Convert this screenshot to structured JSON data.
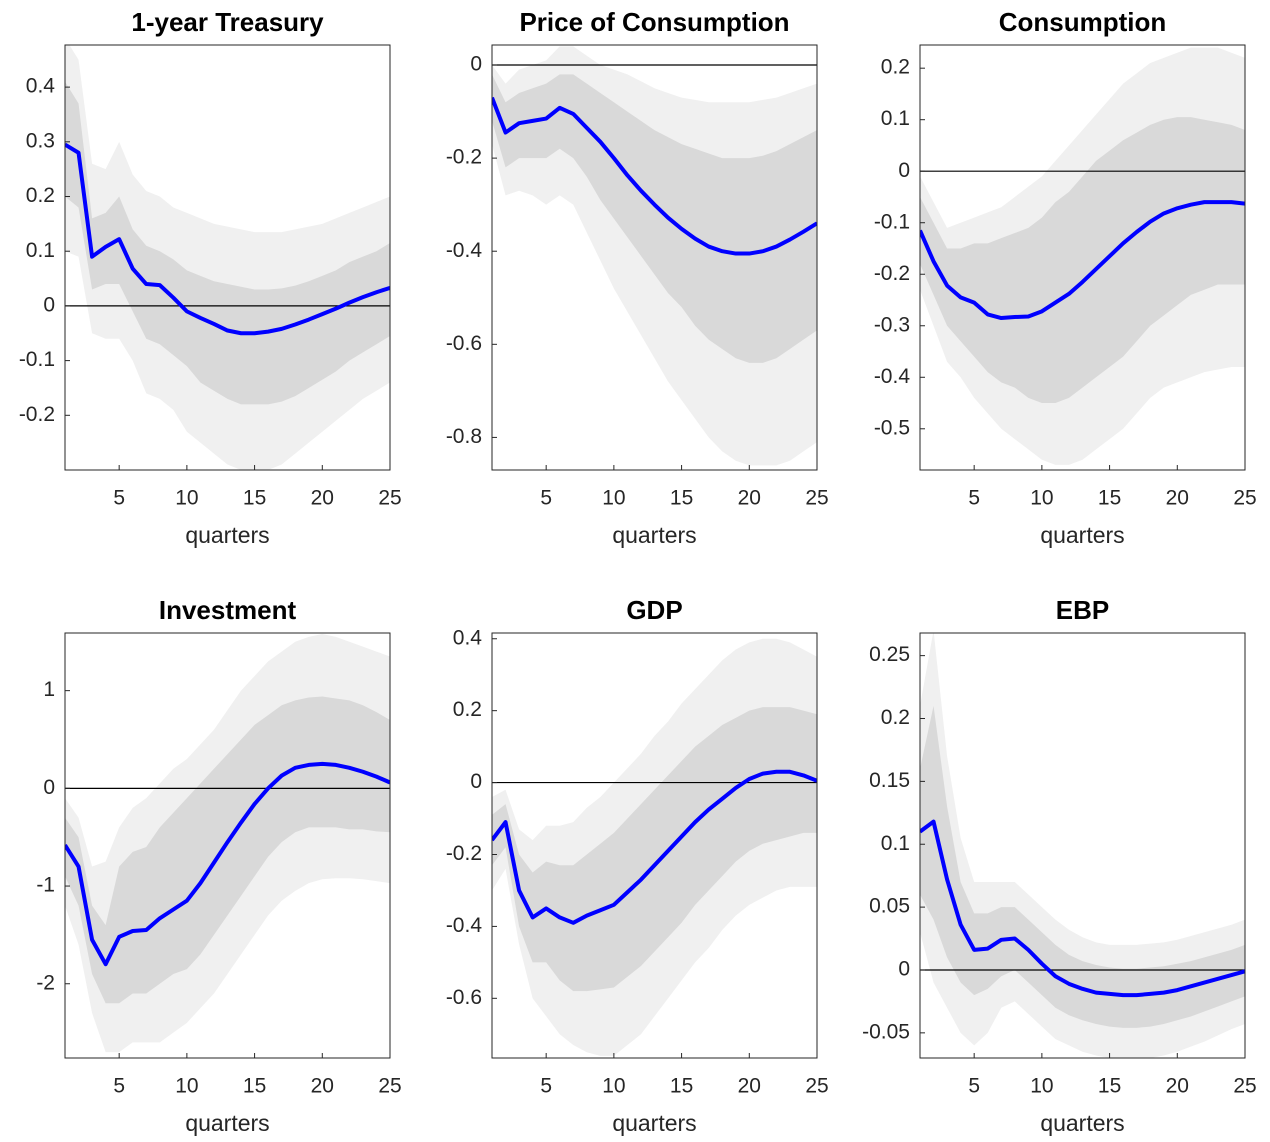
{
  "chart_data": [
    {
      "type": "line",
      "title": "1-year Treasury",
      "xlabel": "quarters",
      "x": [
        1,
        2,
        3,
        4,
        5,
        6,
        7,
        8,
        9,
        10,
        11,
        12,
        13,
        14,
        15,
        16,
        17,
        18,
        19,
        20,
        21,
        22,
        23,
        24,
        25
      ],
      "xlim": [
        1,
        25
      ],
      "xticks": [
        5,
        10,
        15,
        20,
        25
      ],
      "ylim": [
        -0.3,
        0.477
      ],
      "yticks": [
        -0.2,
        -0.1,
        0,
        0.1,
        0.2,
        0.3,
        0.4
      ],
      "reference_line": 0,
      "color": "#0000ff",
      "values": [
        0.295,
        0.28,
        0.09,
        0.108,
        0.122,
        0.068,
        0.04,
        0.038,
        0.015,
        -0.01,
        -0.022,
        -0.033,
        -0.045,
        -0.05,
        -0.05,
        -0.047,
        -0.042,
        -0.034,
        -0.025,
        -0.015,
        -0.005,
        0.006,
        0.016,
        0.025,
        0.033
      ],
      "bands": [
        {
          "color": "#f0f0f0",
          "upper": [
            0.49,
            0.45,
            0.26,
            0.25,
            0.3,
            0.24,
            0.21,
            0.2,
            0.18,
            0.17,
            0.16,
            0.15,
            0.145,
            0.14,
            0.135,
            0.135,
            0.135,
            0.14,
            0.145,
            0.15,
            0.16,
            0.17,
            0.18,
            0.19,
            0.2
          ],
          "lower": [
            0.1,
            0.09,
            -0.05,
            -0.06,
            -0.06,
            -0.1,
            -0.16,
            -0.17,
            -0.19,
            -0.23,
            -0.25,
            -0.27,
            -0.29,
            -0.3,
            -0.3,
            -0.3,
            -0.29,
            -0.27,
            -0.25,
            -0.23,
            -0.21,
            -0.19,
            -0.17,
            -0.155,
            -0.14
          ]
        },
        {
          "color": "#d9d9d9",
          "upper": [
            0.41,
            0.37,
            0.16,
            0.17,
            0.2,
            0.14,
            0.11,
            0.1,
            0.085,
            0.065,
            0.055,
            0.045,
            0.04,
            0.035,
            0.03,
            0.03,
            0.032,
            0.037,
            0.045,
            0.055,
            0.065,
            0.08,
            0.09,
            0.1,
            0.115
          ],
          "lower": [
            0.2,
            0.18,
            0.03,
            0.04,
            0.04,
            -0.01,
            -0.06,
            -0.07,
            -0.09,
            -0.11,
            -0.14,
            -0.155,
            -0.17,
            -0.18,
            -0.18,
            -0.18,
            -0.175,
            -0.165,
            -0.15,
            -0.135,
            -0.12,
            -0.1,
            -0.085,
            -0.07,
            -0.055
          ]
        }
      ]
    },
    {
      "type": "line",
      "title": "Price of Consumption",
      "xlabel": "quarters",
      "x": [
        1,
        2,
        3,
        4,
        5,
        6,
        7,
        8,
        9,
        10,
        11,
        12,
        13,
        14,
        15,
        16,
        17,
        18,
        19,
        20,
        21,
        22,
        23,
        24,
        25
      ],
      "xlim": [
        1,
        25
      ],
      "xticks": [
        5,
        10,
        15,
        20,
        25
      ],
      "ylim": [
        -0.87,
        0.043
      ],
      "yticks": [
        -0.8,
        -0.6,
        -0.4,
        -0.2,
        0
      ],
      "reference_line": 0,
      "color": "#0000ff",
      "values": [
        -0.07,
        -0.145,
        -0.125,
        -0.12,
        -0.115,
        -0.092,
        -0.105,
        -0.135,
        -0.165,
        -0.2,
        -0.237,
        -0.27,
        -0.3,
        -0.328,
        -0.352,
        -0.373,
        -0.39,
        -0.4,
        -0.405,
        -0.405,
        -0.4,
        -0.39,
        -0.375,
        -0.358,
        -0.34
      ],
      "bands": [
        {
          "color": "#f0f0f0",
          "upper": [
            0.0,
            -0.04,
            -0.01,
            0.0,
            0.01,
            0.04,
            0.04,
            0.02,
            0.0,
            -0.01,
            -0.02,
            -0.035,
            -0.05,
            -0.06,
            -0.07,
            -0.075,
            -0.08,
            -0.08,
            -0.08,
            -0.08,
            -0.075,
            -0.07,
            -0.06,
            -0.05,
            -0.04
          ],
          "lower": [
            -0.17,
            -0.28,
            -0.27,
            -0.28,
            -0.3,
            -0.28,
            -0.3,
            -0.36,
            -0.42,
            -0.48,
            -0.53,
            -0.58,
            -0.63,
            -0.68,
            -0.72,
            -0.76,
            -0.8,
            -0.83,
            -0.85,
            -0.86,
            -0.86,
            -0.86,
            -0.85,
            -0.83,
            -0.81
          ]
        },
        {
          "color": "#d9d9d9",
          "upper": [
            -0.02,
            -0.08,
            -0.06,
            -0.05,
            -0.04,
            -0.02,
            -0.02,
            -0.04,
            -0.06,
            -0.08,
            -0.1,
            -0.12,
            -0.14,
            -0.155,
            -0.17,
            -0.18,
            -0.19,
            -0.2,
            -0.2,
            -0.2,
            -0.195,
            -0.185,
            -0.17,
            -0.155,
            -0.14
          ],
          "lower": [
            -0.12,
            -0.22,
            -0.2,
            -0.2,
            -0.2,
            -0.18,
            -0.2,
            -0.24,
            -0.29,
            -0.33,
            -0.37,
            -0.41,
            -0.45,
            -0.49,
            -0.52,
            -0.56,
            -0.59,
            -0.61,
            -0.63,
            -0.64,
            -0.64,
            -0.63,
            -0.61,
            -0.59,
            -0.57
          ]
        }
      ]
    },
    {
      "type": "line",
      "title": "Consumption",
      "xlabel": "quarters",
      "x": [
        1,
        2,
        3,
        4,
        5,
        6,
        7,
        8,
        9,
        10,
        11,
        12,
        13,
        14,
        15,
        16,
        17,
        18,
        19,
        20,
        21,
        22,
        23,
        24,
        25
      ],
      "xlim": [
        1,
        25
      ],
      "xticks": [
        5,
        10,
        15,
        20,
        25
      ],
      "ylim": [
        -0.58,
        0.245
      ],
      "yticks": [
        -0.5,
        -0.4,
        -0.3,
        -0.2,
        -0.1,
        0,
        0.1,
        0.2
      ],
      "reference_line": 0,
      "color": "#0000ff",
      "values": [
        -0.115,
        -0.175,
        -0.222,
        -0.245,
        -0.255,
        -0.278,
        -0.285,
        -0.283,
        -0.282,
        -0.272,
        -0.255,
        -0.238,
        -0.215,
        -0.19,
        -0.165,
        -0.14,
        -0.118,
        -0.098,
        -0.082,
        -0.072,
        -0.065,
        -0.06,
        -0.06,
        -0.06,
        -0.063
      ],
      "bands": [
        {
          "color": "#f0f0f0",
          "upper": [
            -0.01,
            -0.06,
            -0.11,
            -0.1,
            -0.09,
            -0.08,
            -0.07,
            -0.05,
            -0.03,
            -0.01,
            0.02,
            0.05,
            0.08,
            0.11,
            0.14,
            0.17,
            0.19,
            0.21,
            0.22,
            0.23,
            0.24,
            0.24,
            0.24,
            0.23,
            0.22
          ],
          "lower": [
            -0.23,
            -0.3,
            -0.37,
            -0.4,
            -0.44,
            -0.47,
            -0.5,
            -0.52,
            -0.54,
            -0.56,
            -0.57,
            -0.57,
            -0.56,
            -0.54,
            -0.52,
            -0.5,
            -0.47,
            -0.44,
            -0.42,
            -0.41,
            -0.4,
            -0.39,
            -0.385,
            -0.38,
            -0.38
          ]
        },
        {
          "color": "#d9d9d9",
          "upper": [
            -0.05,
            -0.1,
            -0.15,
            -0.15,
            -0.14,
            -0.14,
            -0.13,
            -0.12,
            -0.11,
            -0.09,
            -0.06,
            -0.04,
            -0.01,
            0.02,
            0.04,
            0.06,
            0.075,
            0.09,
            0.1,
            0.105,
            0.105,
            0.1,
            0.095,
            0.09,
            0.08
          ],
          "lower": [
            -0.18,
            -0.24,
            -0.3,
            -0.33,
            -0.36,
            -0.39,
            -0.41,
            -0.42,
            -0.44,
            -0.45,
            -0.45,
            -0.44,
            -0.42,
            -0.4,
            -0.38,
            -0.36,
            -0.33,
            -0.3,
            -0.28,
            -0.26,
            -0.24,
            -0.23,
            -0.22,
            -0.22,
            -0.22
          ]
        }
      ]
    },
    {
      "type": "line",
      "title": "Investment",
      "xlabel": "quarters",
      "x": [
        1,
        2,
        3,
        4,
        5,
        6,
        7,
        8,
        9,
        10,
        11,
        12,
        13,
        14,
        15,
        16,
        17,
        18,
        19,
        20,
        21,
        22,
        23,
        24,
        25
      ],
      "xlim": [
        1,
        25
      ],
      "xticks": [
        5,
        10,
        15,
        20,
        25
      ],
      "ylim": [
        -2.76,
        1.59
      ],
      "yticks": [
        -2,
        -1,
        0,
        1
      ],
      "reference_line": 0,
      "color": "#0000ff",
      "values": [
        -0.58,
        -0.8,
        -1.55,
        -1.8,
        -1.52,
        -1.46,
        -1.45,
        -1.33,
        -1.24,
        -1.15,
        -0.97,
        -0.76,
        -0.55,
        -0.35,
        -0.16,
        0.0,
        0.13,
        0.21,
        0.24,
        0.25,
        0.24,
        0.21,
        0.17,
        0.12,
        0.06
      ],
      "bands": [
        {
          "color": "#f0f0f0",
          "upper": [
            -0.1,
            -0.3,
            -0.8,
            -0.75,
            -0.4,
            -0.2,
            -0.1,
            0.05,
            0.2,
            0.3,
            0.45,
            0.6,
            0.8,
            1.0,
            1.15,
            1.3,
            1.4,
            1.5,
            1.55,
            1.58,
            1.55,
            1.5,
            1.45,
            1.4,
            1.35
          ],
          "lower": [
            -1.2,
            -1.6,
            -2.3,
            -2.7,
            -2.7,
            -2.6,
            -2.6,
            -2.6,
            -2.5,
            -2.4,
            -2.25,
            -2.1,
            -1.9,
            -1.7,
            -1.5,
            -1.3,
            -1.15,
            -1.05,
            -0.97,
            -0.93,
            -0.92,
            -0.92,
            -0.93,
            -0.95,
            -0.97
          ]
        },
        {
          "color": "#d9d9d9",
          "upper": [
            -0.3,
            -0.5,
            -1.2,
            -1.4,
            -0.8,
            -0.65,
            -0.6,
            -0.4,
            -0.25,
            -0.1,
            0.05,
            0.2,
            0.35,
            0.5,
            0.65,
            0.75,
            0.85,
            0.9,
            0.93,
            0.94,
            0.92,
            0.9,
            0.85,
            0.78,
            0.7
          ],
          "lower": [
            -0.9,
            -1.2,
            -1.9,
            -2.2,
            -2.2,
            -2.1,
            -2.1,
            -2.0,
            -1.9,
            -1.85,
            -1.7,
            -1.5,
            -1.3,
            -1.1,
            -0.9,
            -0.7,
            -0.55,
            -0.45,
            -0.4,
            -0.4,
            -0.4,
            -0.42,
            -0.42,
            -0.44,
            -0.45
          ]
        }
      ]
    },
    {
      "type": "line",
      "title": "GDP",
      "xlabel": "quarters",
      "x": [
        1,
        2,
        3,
        4,
        5,
        6,
        7,
        8,
        9,
        10,
        11,
        12,
        13,
        14,
        15,
        16,
        17,
        18,
        19,
        20,
        21,
        22,
        23,
        24,
        25
      ],
      "xlim": [
        1,
        25
      ],
      "xticks": [
        5,
        10,
        15,
        20,
        25
      ],
      "ylim": [
        -0.766,
        0.416
      ],
      "yticks": [
        -0.6,
        -0.4,
        -0.2,
        0,
        0.2,
        0.4
      ],
      "reference_line": 0,
      "color": "#0000ff",
      "values": [
        -0.16,
        -0.11,
        -0.3,
        -0.375,
        -0.35,
        -0.375,
        -0.39,
        -0.37,
        -0.355,
        -0.34,
        -0.305,
        -0.27,
        -0.23,
        -0.19,
        -0.15,
        -0.11,
        -0.075,
        -0.045,
        -0.015,
        0.01,
        0.025,
        0.03,
        0.03,
        0.02,
        0.005
      ],
      "bands": [
        {
          "color": "#f0f0f0",
          "upper": [
            -0.04,
            -0.02,
            -0.13,
            -0.16,
            -0.12,
            -0.12,
            -0.11,
            -0.07,
            -0.04,
            0.0,
            0.04,
            0.08,
            0.13,
            0.17,
            0.22,
            0.26,
            0.3,
            0.34,
            0.37,
            0.39,
            0.4,
            0.4,
            0.39,
            0.37,
            0.35
          ],
          "lower": [
            -0.3,
            -0.24,
            -0.45,
            -0.6,
            -0.65,
            -0.7,
            -0.73,
            -0.75,
            -0.76,
            -0.76,
            -0.73,
            -0.7,
            -0.65,
            -0.6,
            -0.55,
            -0.5,
            -0.46,
            -0.41,
            -0.37,
            -0.34,
            -0.32,
            -0.3,
            -0.29,
            -0.29,
            -0.29
          ]
        },
        {
          "color": "#d9d9d9",
          "upper": [
            -0.09,
            -0.06,
            -0.2,
            -0.25,
            -0.22,
            -0.23,
            -0.23,
            -0.2,
            -0.17,
            -0.14,
            -0.1,
            -0.06,
            -0.02,
            0.02,
            0.06,
            0.1,
            0.13,
            0.16,
            0.18,
            0.2,
            0.21,
            0.21,
            0.21,
            0.2,
            0.19
          ],
          "lower": [
            -0.23,
            -0.18,
            -0.4,
            -0.5,
            -0.5,
            -0.55,
            -0.58,
            -0.58,
            -0.575,
            -0.57,
            -0.54,
            -0.51,
            -0.47,
            -0.43,
            -0.39,
            -0.34,
            -0.3,
            -0.26,
            -0.22,
            -0.19,
            -0.17,
            -0.16,
            -0.15,
            -0.14,
            -0.14
          ]
        }
      ]
    },
    {
      "type": "line",
      "title": "EBP",
      "xlabel": "quarters",
      "x": [
        1,
        2,
        3,
        4,
        5,
        6,
        7,
        8,
        9,
        10,
        11,
        12,
        13,
        14,
        15,
        16,
        17,
        18,
        19,
        20,
        21,
        22,
        23,
        24,
        25
      ],
      "xlim": [
        1,
        25
      ],
      "xticks": [
        5,
        10,
        15,
        20,
        25
      ],
      "ylim": [
        -0.07,
        0.268
      ],
      "yticks": [
        -0.05,
        0,
        0.05,
        0.1,
        0.15,
        0.2,
        0.25
      ],
      "reference_line": 0,
      "color": "#0000ff",
      "values": [
        0.11,
        0.118,
        0.072,
        0.036,
        0.016,
        0.017,
        0.024,
        0.025,
        0.016,
        0.005,
        -0.005,
        -0.011,
        -0.015,
        -0.018,
        -0.019,
        -0.02,
        -0.02,
        -0.019,
        -0.018,
        -0.016,
        -0.013,
        -0.01,
        -0.007,
        -0.004,
        -0.001
      ],
      "bands": [
        {
          "color": "#f0f0f0",
          "upper": [
            0.21,
            0.27,
            0.17,
            0.105,
            0.07,
            0.07,
            0.07,
            0.07,
            0.06,
            0.05,
            0.04,
            0.032,
            0.026,
            0.022,
            0.02,
            0.02,
            0.02,
            0.021,
            0.022,
            0.024,
            0.027,
            0.03,
            0.033,
            0.036,
            0.04
          ],
          "lower": [
            0.03,
            -0.01,
            -0.03,
            -0.05,
            -0.06,
            -0.05,
            -0.03,
            -0.025,
            -0.035,
            -0.045,
            -0.055,
            -0.06,
            -0.065,
            -0.068,
            -0.07,
            -0.071,
            -0.071,
            -0.07,
            -0.068,
            -0.065,
            -0.061,
            -0.057,
            -0.052,
            -0.047,
            -0.043
          ]
        },
        {
          "color": "#d9d9d9",
          "upper": [
            0.16,
            0.21,
            0.13,
            0.07,
            0.045,
            0.045,
            0.05,
            0.05,
            0.04,
            0.03,
            0.02,
            0.012,
            0.007,
            0.004,
            0.002,
            0.001,
            0.001,
            0.002,
            0.003,
            0.005,
            0.007,
            0.01,
            0.013,
            0.016,
            0.02
          ],
          "lower": [
            0.06,
            0.04,
            0.01,
            -0.01,
            -0.02,
            -0.015,
            -0.005,
            0.0,
            -0.01,
            -0.02,
            -0.03,
            -0.036,
            -0.04,
            -0.043,
            -0.045,
            -0.046,
            -0.046,
            -0.045,
            -0.043,
            -0.04,
            -0.037,
            -0.033,
            -0.029,
            -0.025,
            -0.021
          ]
        }
      ]
    }
  ]
}
